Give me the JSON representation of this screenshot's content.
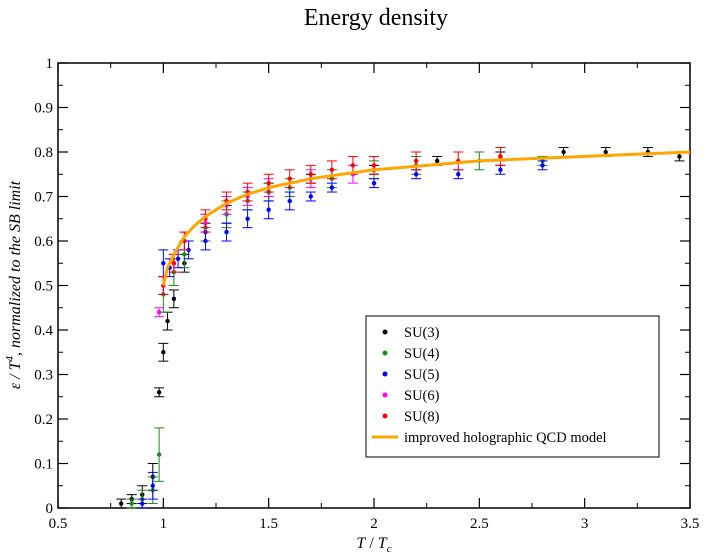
{
  "chart_data": {
    "type": "scatter",
    "title": "Energy density",
    "xlabel": {
      "T": "T",
      "slash": " / ",
      "Tc": "T",
      "sub": "c"
    },
    "ylabel": {
      "eps": "ε / ",
      "T": "T",
      "sup": "4",
      "rest": ", normalized to the SB limit"
    },
    "xlim": [
      0.5,
      3.5
    ],
    "ylim": [
      0,
      1
    ],
    "xticks": [
      0.5,
      1,
      1.5,
      2,
      2.5,
      3,
      3.5
    ],
    "xtick_labels": [
      "0.5",
      "1",
      "1.5",
      "2",
      "2.5",
      "3",
      "3.5"
    ],
    "yticks": [
      0,
      0.1,
      0.2,
      0.3,
      0.4,
      0.5,
      0.6,
      0.7,
      0.8,
      0.9,
      1
    ],
    "ytick_labels": [
      "0",
      "0.1",
      "0.2",
      "0.3",
      "0.4",
      "0.5",
      "0.6",
      "0.7",
      "0.8",
      "0.9",
      "1"
    ],
    "legend_position": "bottom-right",
    "series": [
      {
        "name": "SU(3)",
        "color": "#000000",
        "kind": "points",
        "x": [
          0.8,
          0.85,
          0.9,
          0.95,
          0.98,
          1.0,
          1.02,
          1.05,
          1.1,
          1.2,
          1.3,
          1.5,
          1.7,
          2.0,
          2.3,
          2.6,
          2.9,
          3.1,
          3.3,
          3.45
        ],
        "y": [
          0.01,
          0.02,
          0.03,
          0.07,
          0.26,
          0.35,
          0.42,
          0.47,
          0.55,
          0.62,
          0.66,
          0.71,
          0.74,
          0.76,
          0.78,
          0.79,
          0.8,
          0.8,
          0.8,
          0.79
        ],
        "err": [
          0.01,
          0.01,
          0.02,
          0.03,
          0.01,
          0.02,
          0.02,
          0.02,
          0.02,
          0.02,
          0.02,
          0.02,
          0.01,
          0.01,
          0.01,
          0.01,
          0.01,
          0.01,
          0.01,
          0.01
        ]
      },
      {
        "name": "SU(4)",
        "color": "#1a8a1a",
        "kind": "points",
        "x": [
          0.85,
          0.9,
          0.95,
          0.98,
          1.0,
          1.05,
          1.1,
          1.2,
          1.3,
          1.4,
          1.5,
          1.6,
          1.8,
          2.0,
          2.2,
          2.5,
          2.8
        ],
        "y": [
          0.01,
          0.02,
          0.04,
          0.12,
          0.48,
          0.53,
          0.57,
          0.63,
          0.66,
          0.69,
          0.71,
          0.72,
          0.74,
          0.76,
          0.77,
          0.78,
          0.78
        ],
        "err": [
          0.01,
          0.02,
          0.03,
          0.06,
          0.04,
          0.03,
          0.03,
          0.03,
          0.03,
          0.02,
          0.02,
          0.02,
          0.02,
          0.02,
          0.02,
          0.02,
          0.01
        ]
      },
      {
        "name": "SU(5)",
        "color": "#0000ff",
        "kind": "points",
        "x": [
          0.9,
          0.95,
          1.0,
          1.03,
          1.07,
          1.12,
          1.2,
          1.3,
          1.4,
          1.5,
          1.6,
          1.7,
          1.8,
          2.0,
          2.2,
          2.4,
          2.6,
          2.8
        ],
        "y": [
          0.01,
          0.05,
          0.55,
          0.54,
          0.56,
          0.58,
          0.6,
          0.62,
          0.65,
          0.67,
          0.69,
          0.7,
          0.72,
          0.73,
          0.75,
          0.75,
          0.76,
          0.77
        ],
        "err": [
          0.01,
          0.03,
          0.03,
          0.02,
          0.02,
          0.02,
          0.02,
          0.02,
          0.02,
          0.02,
          0.02,
          0.01,
          0.01,
          0.01,
          0.01,
          0.01,
          0.01,
          0.01
        ]
      },
      {
        "name": "SU(6)",
        "color": "#ff00ff",
        "kind": "points",
        "x": [
          0.98,
          1.0,
          1.05,
          1.1,
          1.2,
          1.3,
          1.4,
          1.5,
          1.7,
          1.9
        ],
        "y": [
          0.44,
          0.5,
          0.55,
          0.6,
          0.64,
          0.68,
          0.7,
          0.72,
          0.74,
          0.75
        ],
        "err": [
          0.01,
          0.02,
          0.02,
          0.02,
          0.02,
          0.02,
          0.02,
          0.02,
          0.02,
          0.02
        ]
      },
      {
        "name": "SU(8)",
        "color": "#ff0000",
        "kind": "points",
        "x": [
          1.0,
          1.05,
          1.1,
          1.2,
          1.3,
          1.4,
          1.5,
          1.6,
          1.7,
          1.8,
          1.9,
          2.0,
          2.2,
          2.4,
          2.6
        ],
        "y": [
          0.5,
          0.55,
          0.6,
          0.65,
          0.69,
          0.71,
          0.73,
          0.74,
          0.75,
          0.76,
          0.77,
          0.77,
          0.78,
          0.78,
          0.79
        ],
        "err": [
          0.02,
          0.02,
          0.02,
          0.02,
          0.02,
          0.02,
          0.02,
          0.02,
          0.02,
          0.02,
          0.02,
          0.02,
          0.02,
          0.02,
          0.02
        ]
      },
      {
        "name": "improved holographic QCD model",
        "color": "#ffa500",
        "kind": "line",
        "x": [
          1.0,
          1.02,
          1.05,
          1.1,
          1.15,
          1.2,
          1.3,
          1.4,
          1.5,
          1.7,
          2.0,
          2.5,
          3.0,
          3.5
        ],
        "y": [
          0.5,
          0.54,
          0.57,
          0.61,
          0.635,
          0.655,
          0.685,
          0.705,
          0.72,
          0.74,
          0.76,
          0.78,
          0.79,
          0.8
        ]
      }
    ]
  }
}
